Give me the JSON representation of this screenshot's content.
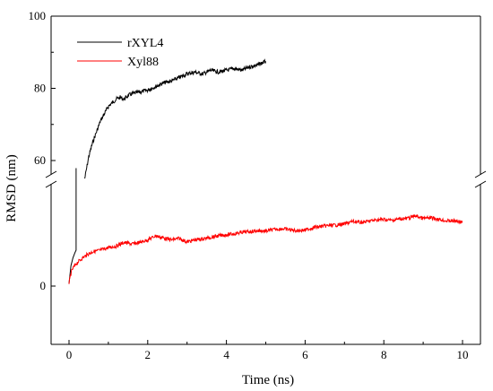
{
  "chart_data": {
    "type": "line",
    "title": "",
    "xlabel": "Time (ns)",
    "ylabel": "RMSD (nm)",
    "xlim": [
      0,
      10
    ],
    "x_ticks": [
      "0",
      "2",
      "4",
      "6",
      "8",
      "10"
    ],
    "y_ticks_upper": [
      "60",
      "80",
      "100"
    ],
    "y_ticks_lower": [
      "0"
    ],
    "axis_break": "broken y-axis with // marks on both sides",
    "upper_ylim": [
      55,
      100
    ],
    "grid": false,
    "legend_position": "top-left",
    "series": [
      {
        "name": "rXYL4",
        "color": "#000000",
        "segments": [
          {
            "panel": "lower",
            "x": [
              0,
              0.05,
              0.1,
              0.15,
              0.18,
              0.18
            ],
            "y": [
              0.5,
              4,
              5.5,
              6.5,
              7,
              23
            ]
          },
          {
            "panel": "upper",
            "x": [
              0.4,
              0.5,
              0.6,
              0.7,
              0.8,
              0.9,
              1.0,
              1.1,
              1.2,
              1.3,
              1.4,
              1.5,
              1.6,
              1.8,
              2.0,
              2.2,
              2.4,
              2.6,
              2.8,
              3.0,
              3.2,
              3.4,
              3.6,
              3.8,
              4.0,
              4.2,
              4.4,
              4.6,
              4.8,
              5.0
            ],
            "y": [
              55,
              61,
              65,
              68,
              71,
              73,
              75,
              76,
              77,
              77.5,
              77,
              78,
              78.5,
              79,
              79.5,
              80.5,
              81.5,
              82,
              83,
              84,
              84.5,
              84,
              85,
              84.5,
              85,
              85.5,
              85,
              86,
              86.5,
              87.5
            ]
          }
        ]
      },
      {
        "name": "Xyl88",
        "color": "#ff0000",
        "panel": "lower",
        "x": [
          0,
          0.05,
          0.1,
          0.2,
          0.3,
          0.4,
          0.5,
          0.6,
          0.8,
          1.0,
          1.2,
          1.4,
          1.6,
          1.8,
          2.0,
          2.2,
          2.4,
          2.6,
          2.8,
          3.0,
          3.2,
          3.4,
          3.6,
          3.8,
          4.0,
          4.2,
          4.4,
          4.6,
          4.8,
          5.0,
          5.2,
          5.4,
          5.6,
          5.8,
          6.0,
          6.2,
          6.4,
          6.6,
          6.8,
          7.0,
          7.2,
          7.4,
          7.6,
          7.8,
          8.0,
          8.2,
          8.4,
          8.6,
          8.8,
          9.0,
          9.2,
          9.4,
          9.6,
          9.8,
          10.0
        ],
        "y": [
          0.5,
          2.5,
          3.5,
          4.5,
          5.2,
          5.8,
          6.3,
          6.7,
          7.0,
          7.5,
          7.8,
          8.5,
          8.2,
          8.5,
          9.0,
          9.8,
          9.4,
          9.0,
          9.3,
          8.6,
          9.0,
          9.2,
          9.5,
          9.8,
          10.0,
          10.2,
          10.5,
          10.6,
          10.8,
          10.7,
          11.0,
          11.2,
          11.0,
          10.8,
          10.9,
          11.4,
          11.6,
          11.8,
          11.9,
          12.1,
          12.6,
          12.4,
          12.6,
          12.9,
          13.0,
          12.8,
          13.1,
          13.2,
          13.7,
          13.2,
          13.3,
          13.0,
          12.7,
          12.7,
          12.5
        ]
      }
    ]
  }
}
